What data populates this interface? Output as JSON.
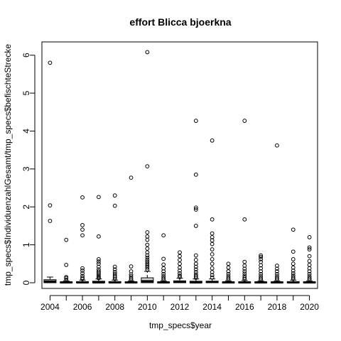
{
  "chart_data": {
    "type": "boxplot",
    "title": "effort Blicca bjoerkna",
    "xlabel": "tmp_specs$year",
    "ylabel": "tmp_specs$IndividuenzahlGesamt/tmp_specs$befischteStrecke",
    "ylim": [
      -0.15,
      6.35
    ],
    "yticks": [
      0,
      1,
      2,
      3,
      4,
      5,
      6
    ],
    "xlim": [
      2003.5,
      2020.5
    ],
    "xticks": [
      2004,
      2006,
      2008,
      2010,
      2012,
      2014,
      2016,
      2018,
      2020
    ],
    "box_fill": "#d3d3d3",
    "boxes": [
      {
        "year": 2004,
        "q1": 0.0,
        "med": 0.03,
        "q3": 0.08,
        "whislo": 0.0,
        "whishi": 0.15,
        "outliers": [
          1.63,
          2.04,
          5.8
        ]
      },
      {
        "year": 2005,
        "q1": 0.0,
        "med": 0.01,
        "q3": 0.02,
        "whislo": 0.0,
        "whishi": 0.05,
        "outliers": [
          0.08,
          0.12,
          0.15,
          0.47,
          1.13
        ]
      },
      {
        "year": 2006,
        "q1": 0.0,
        "med": 0.01,
        "q3": 0.03,
        "whislo": 0.0,
        "whishi": 0.07,
        "outliers": [
          0.1,
          0.13,
          0.18,
          0.25,
          0.32,
          0.38,
          1.25,
          1.4,
          1.52,
          2.25
        ]
      },
      {
        "year": 2007,
        "q1": 0.0,
        "med": 0.01,
        "q3": 0.04,
        "whislo": 0.0,
        "whishi": 0.1,
        "outliers": [
          0.12,
          0.15,
          0.18,
          0.22,
          0.26,
          0.3,
          0.35,
          0.42,
          0.5,
          0.56,
          0.62,
          1.22,
          2.26
        ]
      },
      {
        "year": 2008,
        "q1": 0.0,
        "med": 0.01,
        "q3": 0.03,
        "whislo": 0.0,
        "whishi": 0.07,
        "outliers": [
          0.1,
          0.14,
          0.18,
          0.23,
          0.28,
          0.35,
          0.42,
          2.03,
          2.3
        ]
      },
      {
        "year": 2009,
        "q1": 0.0,
        "med": 0.01,
        "q3": 0.02,
        "whislo": 0.0,
        "whishi": 0.05,
        "outliers": [
          0.08,
          0.12,
          0.17,
          0.22,
          0.3,
          0.43,
          2.77
        ]
      },
      {
        "year": 2010,
        "q1": 0.0,
        "med": 0.04,
        "q3": 0.13,
        "whislo": 0.0,
        "whishi": 0.3,
        "outliers": [
          0.35,
          0.4,
          0.45,
          0.5,
          0.55,
          0.6,
          0.66,
          0.72,
          0.8,
          0.9,
          1.0,
          1.13,
          1.22,
          1.33,
          3.07,
          6.08
        ]
      },
      {
        "year": 2011,
        "q1": 0.0,
        "med": 0.01,
        "q3": 0.02,
        "whislo": 0.0,
        "whishi": 0.05,
        "outliers": [
          0.08,
          0.12,
          0.17,
          0.23,
          0.3,
          0.38,
          0.48,
          0.63,
          1.25
        ]
      },
      {
        "year": 2012,
        "q1": 0.0,
        "med": 0.02,
        "q3": 0.05,
        "whislo": 0.0,
        "whishi": 0.12,
        "outliers": [
          0.15,
          0.19,
          0.25,
          0.32,
          0.4,
          0.5,
          0.6,
          0.7,
          0.8
        ]
      },
      {
        "year": 2013,
        "q1": 0.0,
        "med": 0.01,
        "q3": 0.04,
        "whislo": 0.0,
        "whishi": 0.1,
        "outliers": [
          0.13,
          0.17,
          0.22,
          0.28,
          0.35,
          0.42,
          0.5,
          0.6,
          0.72,
          1.5,
          1.93,
          1.98,
          2.85,
          4.27
        ]
      },
      {
        "year": 2014,
        "q1": 0.0,
        "med": 0.02,
        "q3": 0.04,
        "whislo": 0.0,
        "whishi": 0.1,
        "outliers": [
          0.14,
          0.2,
          0.28,
          0.38,
          0.5,
          0.62,
          0.75,
          0.88,
          1.02,
          1.12,
          1.2,
          1.3,
          1.67,
          3.75
        ]
      },
      {
        "year": 2015,
        "q1": 0.0,
        "med": 0.01,
        "q3": 0.02,
        "whislo": 0.0,
        "whishi": 0.05,
        "outliers": [
          0.08,
          0.12,
          0.17,
          0.23,
          0.3,
          0.4,
          0.5
        ]
      },
      {
        "year": 2016,
        "q1": 0.0,
        "med": 0.01,
        "q3": 0.02,
        "whislo": 0.0,
        "whishi": 0.06,
        "outliers": [
          0.09,
          0.13,
          0.18,
          0.24,
          0.3,
          0.37,
          0.45,
          0.55,
          1.67,
          4.27
        ]
      },
      {
        "year": 2017,
        "q1": 0.0,
        "med": 0.01,
        "q3": 0.02,
        "whislo": 0.0,
        "whishi": 0.05,
        "outliers": [
          0.08,
          0.12,
          0.17,
          0.23,
          0.3,
          0.38,
          0.46,
          0.55,
          0.62,
          0.68,
          0.72
        ]
      },
      {
        "year": 2018,
        "q1": 0.0,
        "med": 0.01,
        "q3": 0.02,
        "whislo": 0.0,
        "whishi": 0.05,
        "outliers": [
          0.08,
          0.12,
          0.17,
          0.23,
          0.3,
          0.37,
          0.45,
          3.62
        ]
      },
      {
        "year": 2019,
        "q1": 0.0,
        "med": 0.01,
        "q3": 0.03,
        "whislo": 0.0,
        "whishi": 0.07,
        "outliers": [
          0.1,
          0.14,
          0.19,
          0.25,
          0.32,
          0.4,
          0.5,
          0.62,
          0.82,
          1.4
        ]
      },
      {
        "year": 2020,
        "q1": 0.0,
        "med": 0.01,
        "q3": 0.02,
        "whislo": 0.0,
        "whishi": 0.05,
        "outliers": [
          0.08,
          0.12,
          0.17,
          0.23,
          0.3,
          0.38,
          0.47,
          0.57,
          0.7,
          0.88,
          0.93,
          1.2
        ]
      }
    ]
  }
}
